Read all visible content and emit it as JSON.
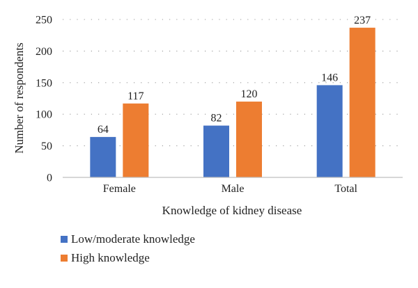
{
  "chart_data": {
    "type": "bar",
    "categories": [
      "Female",
      "Male",
      "Total"
    ],
    "series": [
      {
        "name": "Low/moderate knowledge",
        "values": [
          64,
          82,
          146
        ],
        "color": "#4472C4"
      },
      {
        "name": "High knowledge",
        "values": [
          117,
          120,
          237
        ],
        "color": "#ED7D31"
      }
    ],
    "xlabel": "Knowledge of kidney disease",
    "ylabel": "Number of respondents",
    "ylim": [
      0,
      250
    ],
    "yticks": [
      0,
      50,
      100,
      150,
      200,
      250
    ],
    "grid": true,
    "grid_style": "dotted",
    "legend_position": "bottom-left"
  }
}
